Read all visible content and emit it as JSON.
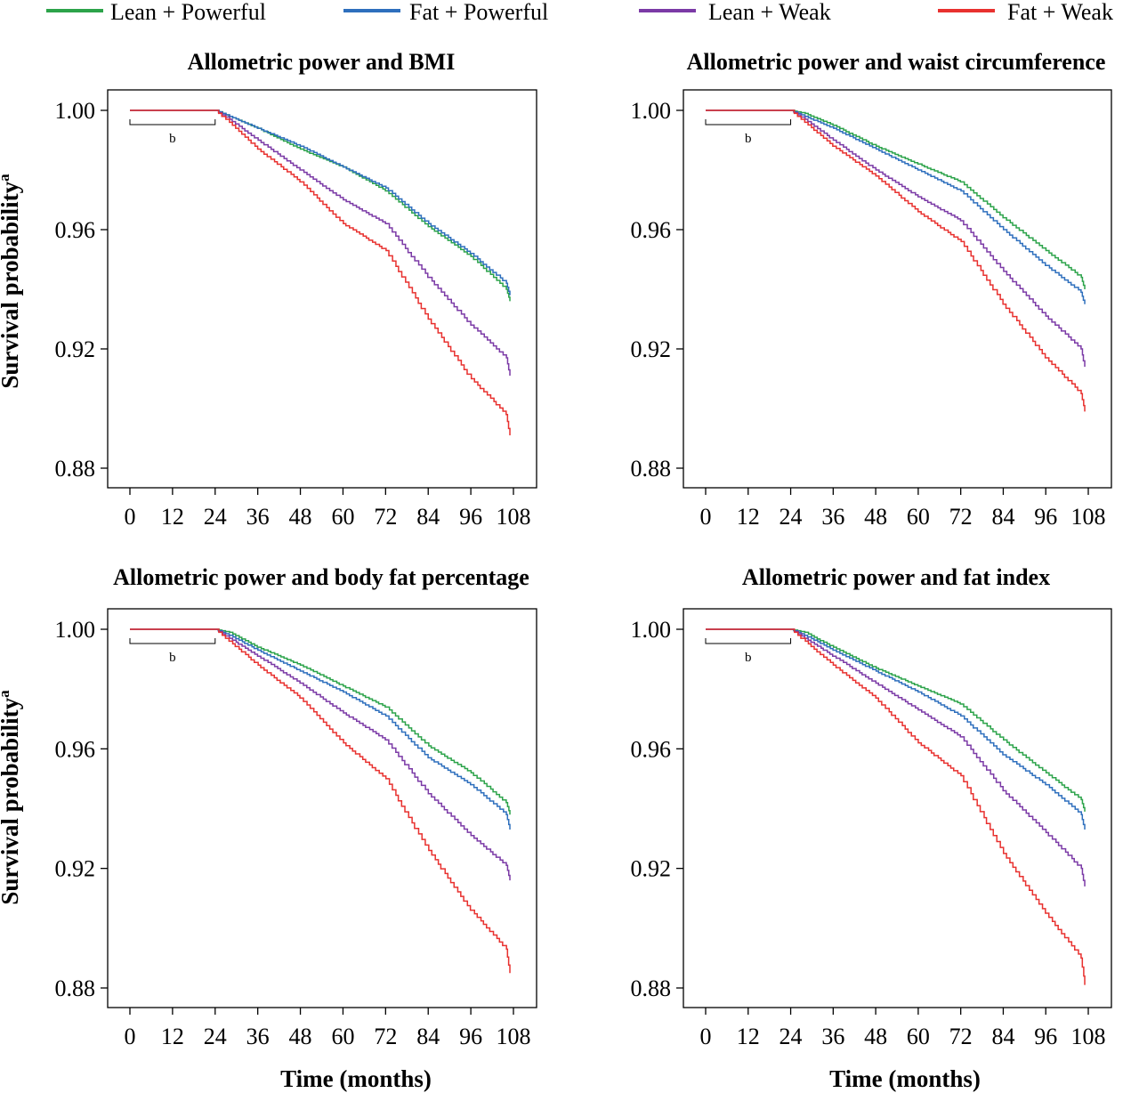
{
  "legend": [
    {
      "label": "Lean + Powerful",
      "color": "#2ca34a"
    },
    {
      "label": "Fat + Powerful",
      "color": "#2e6fbd"
    },
    {
      "label": "Lean + Weak",
      "color": "#7b3aa6"
    },
    {
      "label": "Fat + Weak",
      "color": "#e8312f"
    }
  ],
  "ylabel": "Survival probability",
  "ylabel_superscript": "a",
  "xlabel": "Time (months)",
  "gap_label": "b",
  "chart_data": [
    {
      "type": "line",
      "title": "Allometric power and BMI",
      "xlabel": "",
      "ylabel": "Survival probabilitya",
      "xlim": [
        0,
        108
      ],
      "ylim": [
        0.88,
        1.0
      ],
      "xticks": [
        "0",
        "12",
        "24",
        "36",
        "48",
        "60",
        "72",
        "84",
        "96",
        "108"
      ],
      "yticks": [
        "1.00",
        "0.96",
        "0.92",
        "0.88"
      ],
      "x": [
        0,
        24,
        28,
        36,
        48,
        60,
        72,
        84,
        96,
        106,
        107
      ],
      "series": [
        {
          "name": "Lean + Powerful",
          "values": [
            1.0,
            1.0,
            0.998,
            0.994,
            0.987,
            0.981,
            0.973,
            0.961,
            0.951,
            0.94,
            0.936
          ]
        },
        {
          "name": "Fat + Powerful",
          "values": [
            1.0,
            1.0,
            0.998,
            0.994,
            0.988,
            0.981,
            0.974,
            0.962,
            0.952,
            0.942,
            0.938
          ]
        },
        {
          "name": "Lean + Weak",
          "values": [
            1.0,
            1.0,
            0.997,
            0.99,
            0.98,
            0.97,
            0.962,
            0.944,
            0.928,
            0.917,
            0.911
          ]
        },
        {
          "name": "Fat + Weak",
          "values": [
            1.0,
            1.0,
            0.996,
            0.987,
            0.976,
            0.962,
            0.953,
            0.93,
            0.91,
            0.898,
            0.891
          ]
        }
      ]
    },
    {
      "type": "line",
      "title": "Allometric power and waist circumference",
      "xlabel": "",
      "ylabel": "",
      "xlim": [
        0,
        108
      ],
      "ylim": [
        0.88,
        1.0
      ],
      "xticks": [
        "0",
        "12",
        "24",
        "36",
        "48",
        "60",
        "72",
        "84",
        "96",
        "108"
      ],
      "yticks": [
        "1.00",
        "0.96",
        "0.92",
        "0.88"
      ],
      "x": [
        0,
        24,
        28,
        36,
        48,
        60,
        72,
        84,
        96,
        106,
        107
      ],
      "series": [
        {
          "name": "Lean + Powerful",
          "values": [
            1.0,
            1.0,
            0.999,
            0.995,
            0.988,
            0.982,
            0.976,
            0.964,
            0.953,
            0.944,
            0.94
          ]
        },
        {
          "name": "Fat + Powerful",
          "values": [
            1.0,
            1.0,
            0.998,
            0.994,
            0.987,
            0.98,
            0.973,
            0.96,
            0.948,
            0.939,
            0.935
          ]
        },
        {
          "name": "Lean + Weak",
          "values": [
            1.0,
            1.0,
            0.997,
            0.99,
            0.98,
            0.971,
            0.963,
            0.946,
            0.931,
            0.92,
            0.914
          ]
        },
        {
          "name": "Fat + Weak",
          "values": [
            1.0,
            1.0,
            0.996,
            0.988,
            0.978,
            0.966,
            0.956,
            0.935,
            0.917,
            0.905,
            0.899
          ]
        }
      ]
    },
    {
      "type": "line",
      "title": "Allometric power and body fat percentage",
      "xlabel": "Time (months)",
      "ylabel": "Survival probabilitya",
      "xlim": [
        0,
        108
      ],
      "ylim": [
        0.88,
        1.0
      ],
      "xticks": [
        "0",
        "12",
        "24",
        "36",
        "48",
        "60",
        "72",
        "84",
        "96",
        "108"
      ],
      "yticks": [
        "1.00",
        "0.96",
        "0.92",
        "0.88"
      ],
      "x": [
        0,
        24,
        28,
        36,
        48,
        60,
        72,
        84,
        96,
        106,
        107
      ],
      "series": [
        {
          "name": "Lean + Powerful",
          "values": [
            1.0,
            1.0,
            0.999,
            0.994,
            0.988,
            0.981,
            0.974,
            0.961,
            0.952,
            0.942,
            0.938
          ]
        },
        {
          "name": "Fat + Powerful",
          "values": [
            1.0,
            1.0,
            0.998,
            0.993,
            0.986,
            0.979,
            0.971,
            0.957,
            0.948,
            0.938,
            0.933
          ]
        },
        {
          "name": "Lean + Weak",
          "values": [
            1.0,
            1.0,
            0.997,
            0.991,
            0.982,
            0.972,
            0.963,
            0.945,
            0.931,
            0.921,
            0.916
          ]
        },
        {
          "name": "Fat + Weak",
          "values": [
            1.0,
            1.0,
            0.996,
            0.988,
            0.977,
            0.962,
            0.95,
            0.926,
            0.906,
            0.893,
            0.885
          ]
        }
      ]
    },
    {
      "type": "line",
      "title": "Allometric power and fat index",
      "xlabel": "Time (months)",
      "ylabel": "",
      "xlim": [
        0,
        108
      ],
      "ylim": [
        0.88,
        1.0
      ],
      "xticks": [
        "0",
        "12",
        "24",
        "36",
        "48",
        "60",
        "72",
        "84",
        "96",
        "108"
      ],
      "yticks": [
        "1.00",
        "0.96",
        "0.92",
        "0.88"
      ],
      "x": [
        0,
        24,
        28,
        36,
        48,
        60,
        72,
        84,
        96,
        106,
        107
      ],
      "series": [
        {
          "name": "Lean + Powerful",
          "values": [
            1.0,
            1.0,
            0.999,
            0.994,
            0.987,
            0.981,
            0.975,
            0.963,
            0.952,
            0.943,
            0.939
          ]
        },
        {
          "name": "Fat + Powerful",
          "values": [
            1.0,
            1.0,
            0.998,
            0.993,
            0.986,
            0.979,
            0.971,
            0.958,
            0.948,
            0.938,
            0.933
          ]
        },
        {
          "name": "Lean + Weak",
          "values": [
            1.0,
            1.0,
            0.997,
            0.991,
            0.982,
            0.973,
            0.964,
            0.946,
            0.932,
            0.92,
            0.914
          ]
        },
        {
          "name": "Fat + Weak",
          "values": [
            1.0,
            1.0,
            0.996,
            0.988,
            0.977,
            0.962,
            0.951,
            0.925,
            0.905,
            0.89,
            0.881
          ]
        }
      ]
    }
  ]
}
